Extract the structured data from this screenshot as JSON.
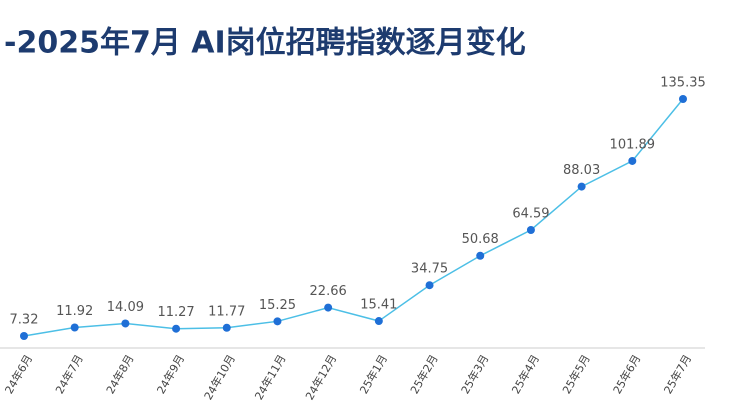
{
  "chart_data": {
    "type": "line",
    "title": "-2025年7月 AI岗位招聘指数逐月变化",
    "categories": [
      "24年6月",
      "24年7月",
      "24年8月",
      "24年9月",
      "24年10月",
      "24年11月",
      "24年12月",
      "25年1月",
      "25年2月",
      "25年3月",
      "25年4月",
      "25年5月",
      "25年6月",
      "25年7月"
    ],
    "values": [
      7.32,
      11.92,
      14.09,
      11.27,
      11.77,
      15.25,
      22.66,
      15.41,
      34.75,
      50.68,
      64.59,
      88.03,
      101.89,
      135.35
    ],
    "color": "#4cbfe6",
    "marker_color": "#1f6fd6"
  }
}
